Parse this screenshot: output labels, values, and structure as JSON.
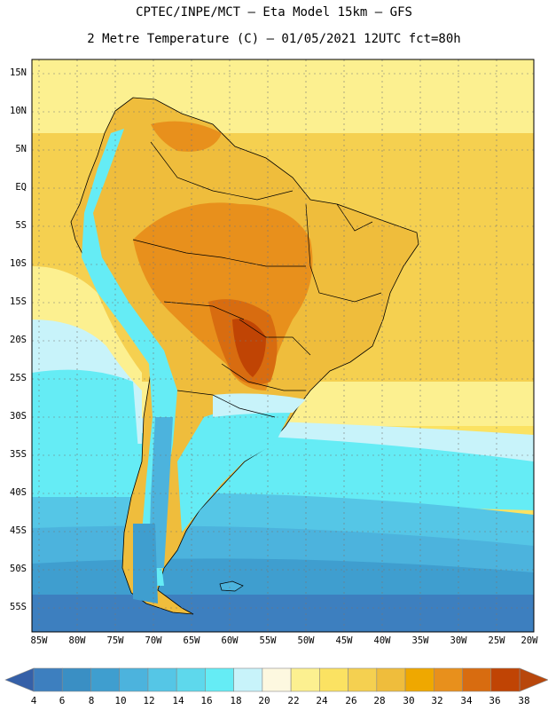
{
  "header": {
    "line1": "CPTEC/INPE/MCT –  Eta Model 15km – GFS",
    "line2": "2 Metre Temperature (C) – 01/05/2021 12UTC fct=80h"
  },
  "map": {
    "lat_labels": [
      "15N",
      "10N",
      "5N",
      "EQ",
      "5S",
      "10S",
      "15S",
      "20S",
      "25S",
      "30S",
      "35S",
      "40S",
      "45S",
      "50S",
      "55S"
    ],
    "lon_labels": [
      "85W",
      "80W",
      "75W",
      "70W",
      "65W",
      "60W",
      "55W",
      "50W",
      "45W",
      "40W",
      "35W",
      "30W",
      "25W",
      "20W"
    ]
  },
  "colorbar": {
    "labels": [
      "4",
      "6",
      "8",
      "10",
      "12",
      "14",
      "16",
      "18",
      "20",
      "22",
      "24",
      "26",
      "28",
      "30",
      "32",
      "34",
      "36",
      "38"
    ],
    "colors": [
      "#3d7fbf",
      "#3a8fc4",
      "#3f9ecf",
      "#4cb3dd",
      "#55c6e6",
      "#5ed8ec",
      "#65ecf5",
      "#c8f3fa",
      "#fdf8e0",
      "#fcf090",
      "#fbe262",
      "#f5d050",
      "#efbd3c",
      "#efa800",
      "#e8901c",
      "#d86c10",
      "#c04404"
    ],
    "low_color": "#3560a8",
    "high_color": "#b8470c"
  }
}
